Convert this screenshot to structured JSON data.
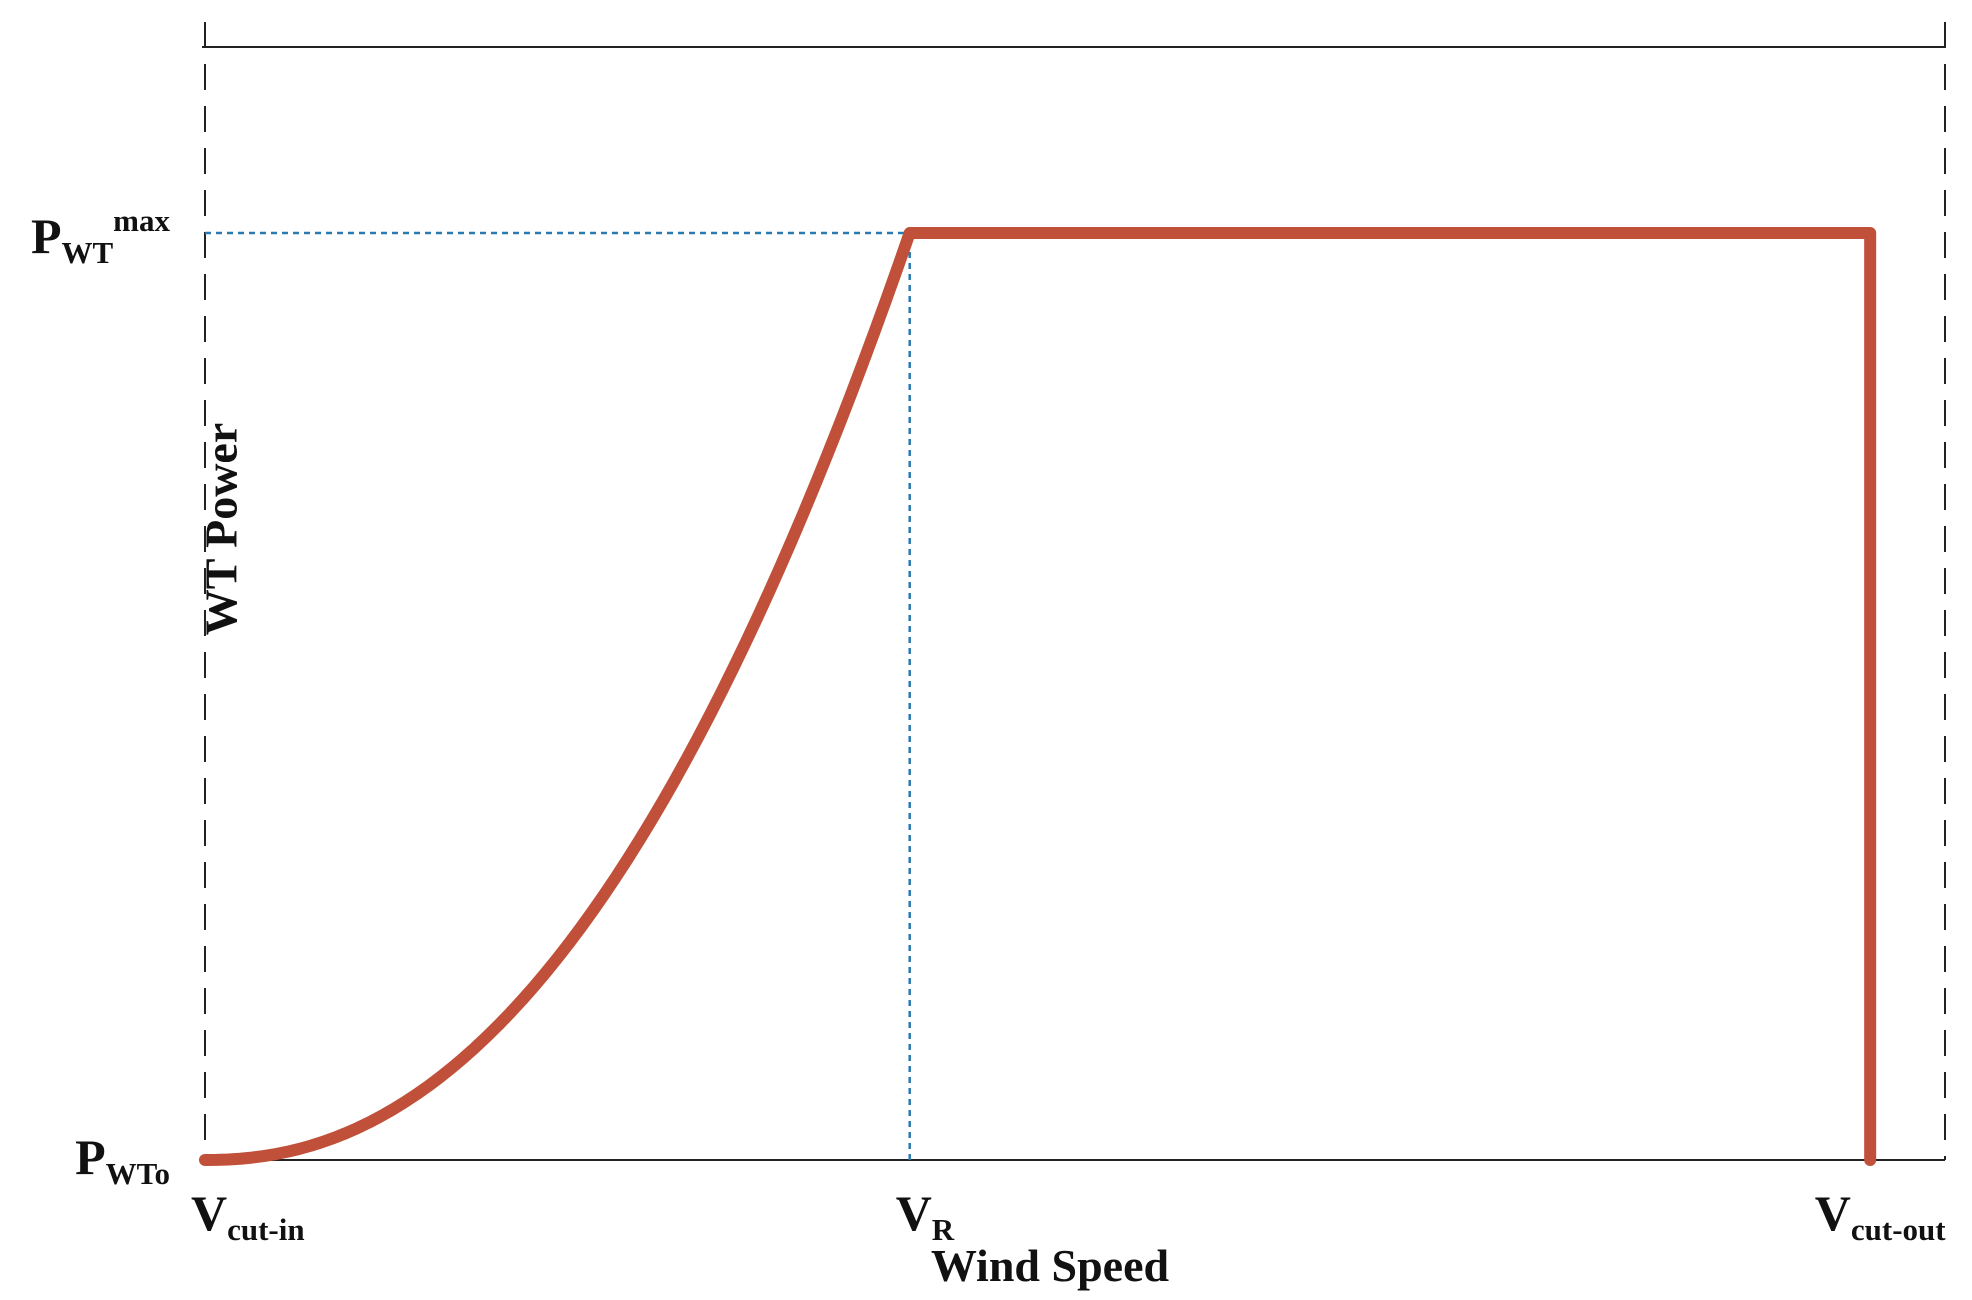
{
  "chart_data": {
    "type": "line",
    "title": "",
    "xlabel": "Wind Speed",
    "ylabel": "WT Power",
    "x_ticks": [
      {
        "id": "vcutin",
        "main": "V",
        "sub": "cut-in",
        "x": 0.0
      },
      {
        "id": "vr",
        "main": "V",
        "sub": "R",
        "x": 0.405
      },
      {
        "id": "vcutout",
        "main": "V",
        "sub": "cut-out",
        "x": 0.957
      }
    ],
    "y_ticks": [
      {
        "id": "pmax",
        "main": "P",
        "sub": "WT",
        "sup": "max",
        "y": 1.0
      },
      {
        "id": "p0",
        "main": "P",
        "sub": "WTo",
        "sup": "",
        "y": 0.0
      }
    ],
    "xlim": [
      0,
      1
    ],
    "ylim": [
      0,
      1.2
    ],
    "series": [
      {
        "color": "#c0503a",
        "points": [
          [
            0.0,
            0.0
          ],
          [
            0.025,
            0.004
          ],
          [
            0.05,
            0.014
          ],
          [
            0.075,
            0.03
          ],
          [
            0.1,
            0.052
          ],
          [
            0.125,
            0.08
          ],
          [
            0.15,
            0.114
          ],
          [
            0.175,
            0.154
          ],
          [
            0.2,
            0.2
          ],
          [
            0.225,
            0.252
          ],
          [
            0.25,
            0.31
          ],
          [
            0.275,
            0.375
          ],
          [
            0.3,
            0.446
          ],
          [
            0.325,
            0.524
          ],
          [
            0.35,
            0.61
          ],
          [
            0.375,
            0.706
          ],
          [
            0.39,
            0.776
          ],
          [
            0.405,
            1.0
          ],
          [
            0.957,
            1.0
          ],
          [
            0.957,
            0.0
          ]
        ]
      }
    ],
    "reference_lines": [
      {
        "type": "horizontal",
        "y": 1.0,
        "from_x": 0.0,
        "to_x": 0.405,
        "color": "#2a7ab0",
        "style": "dotted"
      },
      {
        "type": "vertical",
        "x": 0.405,
        "from_y": 0.0,
        "to_y": 1.0,
        "color": "#2a7ab0",
        "style": "dotted"
      }
    ],
    "frame": {
      "top_line": true,
      "left_dashed": true,
      "right_dashed": true,
      "bottom_line": true
    },
    "grid": false,
    "legend": "none"
  }
}
